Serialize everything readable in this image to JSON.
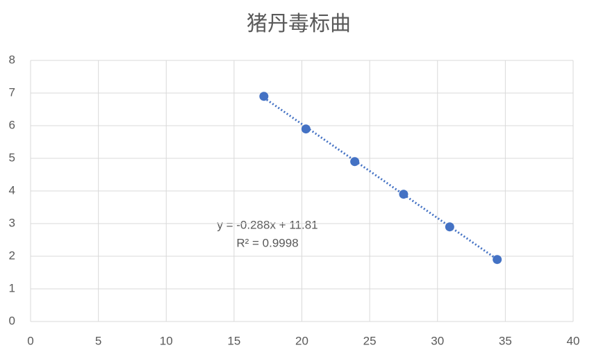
{
  "chart_data": {
    "type": "scatter",
    "title": "猪丹毒标曲",
    "x": [
      17.2,
      20.3,
      23.9,
      27.5,
      30.9,
      34.4
    ],
    "series": [
      {
        "color": "#4472c4",
        "values": [
          6.9,
          5.9,
          4.9,
          3.9,
          2.9,
          1.9
        ]
      }
    ],
    "xlim": [
      0,
      40
    ],
    "xticks": [
      0,
      5,
      10,
      15,
      20,
      25,
      30,
      35,
      40
    ],
    "ylim": [
      0,
      8
    ],
    "yticks": [
      0,
      1,
      2,
      3,
      4,
      5,
      6,
      7,
      8
    ],
    "grid": true,
    "trendline": {
      "slope": -0.288,
      "intercept": 11.81,
      "equation": "y = -0.288x + 11.81",
      "r_squared": "R² = 0.9998"
    }
  }
}
